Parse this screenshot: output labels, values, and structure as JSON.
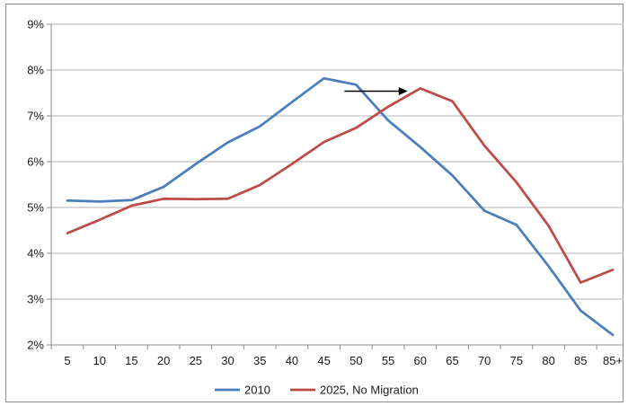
{
  "chart_data": {
    "type": "line",
    "title": "",
    "xlabel": "",
    "ylabel": "",
    "categories": [
      "5",
      "10",
      "15",
      "20",
      "25",
      "30",
      "35",
      "40",
      "45",
      "50",
      "55",
      "60",
      "65",
      "70",
      "75",
      "80",
      "85",
      "85+"
    ],
    "ylim": [
      2,
      9
    ],
    "yticks": [
      "2%",
      "3%",
      "4%",
      "5%",
      "6%",
      "7%",
      "8%",
      "9%"
    ],
    "grid": true,
    "legend_position": "bottom",
    "series": [
      {
        "name": "2010",
        "color": "#4a7ebb",
        "values": [
          5.15,
          5.13,
          5.16,
          5.45,
          5.95,
          6.42,
          6.77,
          7.3,
          7.82,
          7.68,
          6.9,
          6.32,
          5.7,
          4.93,
          4.62,
          3.72,
          2.75,
          2.22
        ]
      },
      {
        "name": "2025, No Migration",
        "color": "#be4b48",
        "values": [
          4.44,
          4.73,
          5.04,
          5.19,
          5.18,
          5.19,
          5.49,
          5.95,
          6.43,
          6.74,
          7.2,
          7.6,
          7.32,
          6.35,
          5.55,
          4.6,
          3.36,
          3.64
        ]
      }
    ],
    "annotation": {
      "type": "arrow",
      "from_x": "50",
      "to_x": "60",
      "y": 7.54
    }
  }
}
